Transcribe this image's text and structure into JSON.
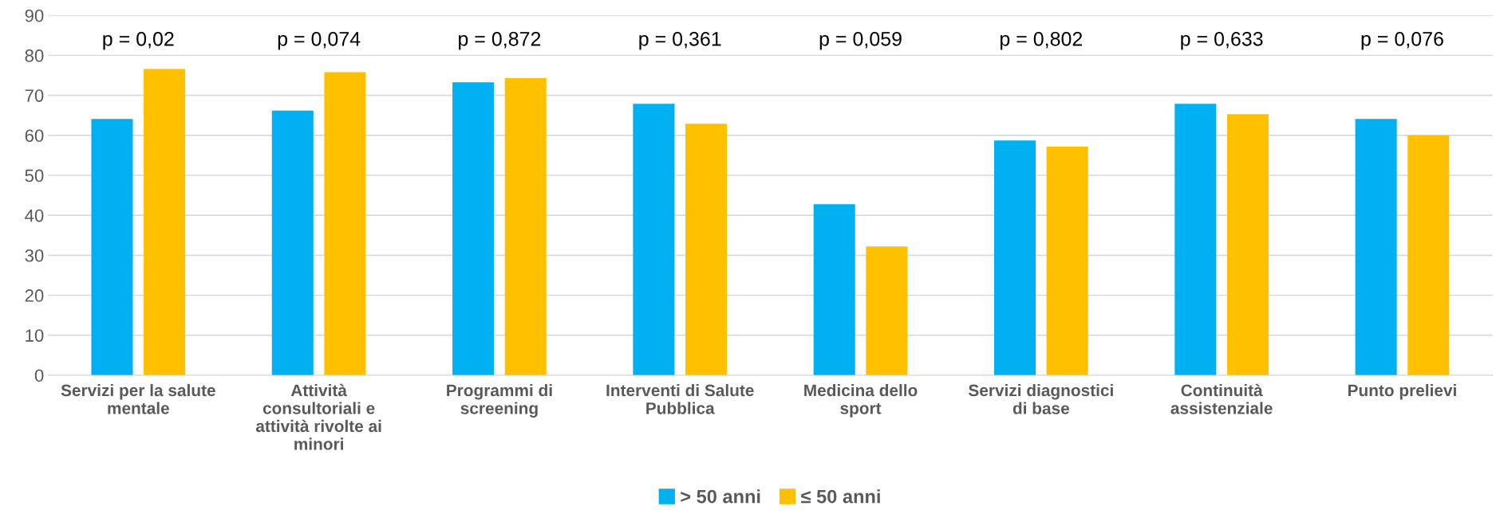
{
  "chart_data": {
    "type": "bar",
    "categories": [
      "Servizi per la salute\nmentale",
      "Attività\nconsultoriali e\nattività rivolte ai\nminori",
      "Programmi di\nscreening",
      "Interventi di Salute\nPubblica",
      "Medicina dello\nsport",
      "Servizi diagnostici\ndi base",
      "Continuità\nassistenziale",
      "Punto prelievi"
    ],
    "series": [
      {
        "name": "> 50 anni",
        "color": "#00b0f0",
        "values": [
          64.1,
          66.2,
          73.3,
          67.9,
          42.8,
          58.7,
          67.9,
          64.1
        ]
      },
      {
        "name": "≤ 50 anni",
        "color": "#ffc000",
        "values": [
          76.6,
          75.8,
          74.3,
          62.9,
          32.2,
          57.2,
          65.3,
          60.0
        ]
      }
    ],
    "ylim": [
      0,
      90
    ],
    "yticks": [
      0,
      10,
      20,
      30,
      40,
      50,
      60,
      70,
      80,
      90
    ],
    "grid": "y",
    "legend": "bottom",
    "annotations": [
      "p = 0,02",
      "p = 0,074",
      "p = 0,872",
      "p = 0,361",
      "p = 0,059",
      "p = 0,802",
      "p = 0,633",
      "p = 0,076"
    ]
  }
}
